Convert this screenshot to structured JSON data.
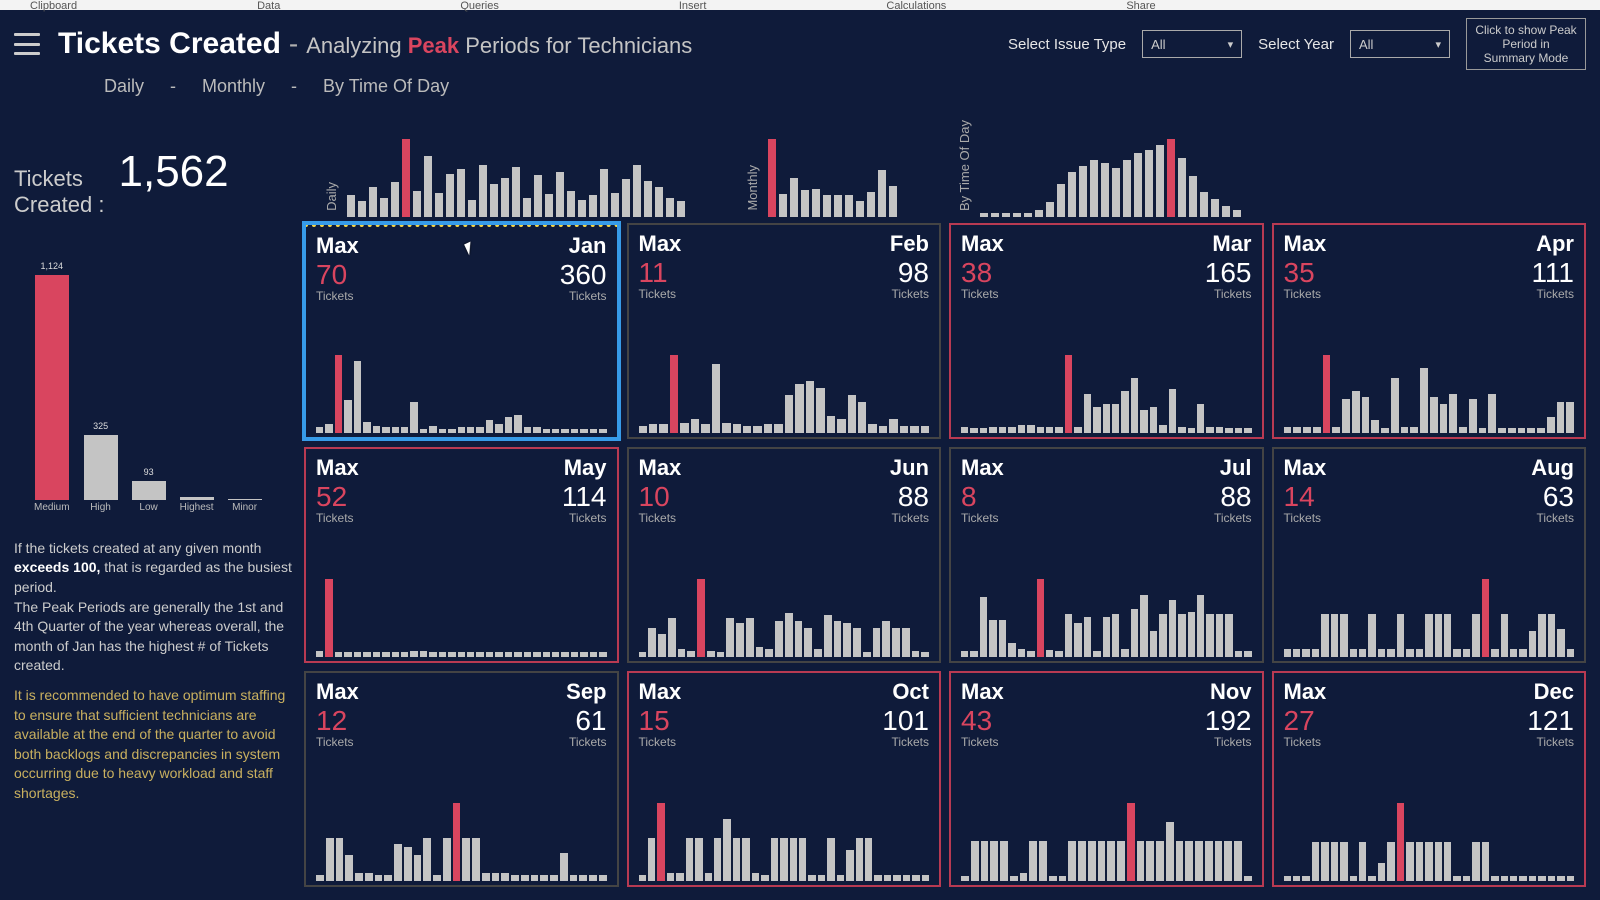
{
  "colors": {
    "background": "#0f1b3a",
    "text": "#e6e6e6",
    "accent_red": "#d9455f",
    "accent_blue": "#379be8",
    "accent_yellow": "#c9b05f",
    "bar_gray": "#c4c4c4",
    "border_busy": "#b83a52",
    "border_normal": "#555"
  },
  "ribbon": [
    "Clipboard",
    "Data",
    "Queries",
    "Insert",
    "Calculations",
    "Share"
  ],
  "header": {
    "title": "Tickets Created",
    "subtitle_pre": "Analyzing",
    "subtitle_peak": "Peak",
    "subtitle_post": "Periods for Technicians",
    "filter1_label": "Select Issue Type",
    "filter1_value": "All",
    "filter2_label": "Select Year",
    "filter2_value": "All",
    "summary_btn": "Click to show Peak Period in Summary Mode"
  },
  "tabs": {
    "t1": "Daily",
    "sep": "-",
    "t2": "Monthly",
    "t3": "By Time Of Day"
  },
  "kpi": {
    "label_l1": "Tickets",
    "label_l2": "Created :",
    "value": "1,562"
  },
  "priority_chart": {
    "type": "bar",
    "ylim": [
      0,
      1200
    ],
    "bars": [
      {
        "cat": "Medium",
        "value": 1124,
        "color": "#d9455f",
        "label": "1,124"
      },
      {
        "cat": "High",
        "value": 325,
        "color": "#c4c4c4",
        "label": "325"
      },
      {
        "cat": "Low",
        "value": 93,
        "color": "#c4c4c4",
        "label": "93"
      },
      {
        "cat": "Highest",
        "value": 15,
        "color": "#c4c4c4",
        "label": ""
      },
      {
        "cat": "Minor",
        "value": 5,
        "color": "#c4c4c4",
        "label": ""
      }
    ]
  },
  "para": {
    "p1a": "If the tickets created at any given month ",
    "p1b": "exceeds 100,",
    "p1c": " that is regarded as the busiest period.",
    "p2": "The Peak Periods are generally the 1st and 4th Quarter of the year whereas overall, the month of Jan has the highest # of Tickets created.",
    "rec": "It is recommended to have optimum staffing to ensure that sufficient technicians are available at the end of the quarter to avoid both backlogs and discrepancies in system occurring due to heavy workload and staff shortages."
  },
  "mini": {
    "daily": {
      "label": "Daily",
      "bars": [
        25,
        18,
        35,
        22,
        40,
        90,
        30,
        70,
        28,
        50,
        55,
        20,
        60,
        38,
        45,
        58,
        22,
        48,
        26,
        52,
        30,
        20,
        25,
        55,
        28,
        44,
        60,
        42,
        35,
        22,
        18
      ],
      "hl": 5
    },
    "monthly": {
      "label": "Monthly",
      "bars": [
        100,
        30,
        50,
        35,
        36,
        28,
        28,
        28,
        20,
        32,
        60,
        40
      ],
      "hl": 0
    },
    "tod": {
      "label": "By Time Of Day",
      "bars": [
        5,
        5,
        5,
        5,
        5,
        8,
        18,
        40,
        55,
        62,
        70,
        66,
        60,
        70,
        78,
        82,
        88,
        95,
        72,
        50,
        30,
        22,
        14,
        8
      ],
      "hl": 17
    }
  },
  "busy_threshold": 100,
  "months": [
    {
      "name": "Jan",
      "max": 70,
      "total": 360,
      "selected": true,
      "spark": [
        5,
        8,
        70,
        30,
        65,
        10,
        6,
        5,
        5,
        5,
        28,
        4,
        6,
        4,
        4,
        5,
        5,
        5,
        12,
        8,
        14,
        16,
        5,
        5,
        4,
        4,
        4,
        4,
        4,
        4,
        4
      ]
    },
    {
      "name": "Feb",
      "max": 11,
      "total": 98,
      "spark": [
        4,
        5,
        5,
        45,
        6,
        8,
        5,
        40,
        6,
        5,
        4,
        4,
        5,
        5,
        22,
        28,
        30,
        26,
        10,
        8,
        22,
        18,
        5,
        4,
        8,
        4,
        4,
        4
      ]
    },
    {
      "name": "Mar",
      "max": 38,
      "total": 165,
      "spark": [
        5,
        4,
        4,
        5,
        5,
        5,
        6,
        6,
        5,
        5,
        5,
        60,
        5,
        30,
        20,
        22,
        22,
        32,
        42,
        18,
        20,
        6,
        34,
        5,
        4,
        22,
        5,
        5,
        4,
        4,
        4
      ]
    },
    {
      "name": "Apr",
      "max": 35,
      "total": 111,
      "spark": [
        5,
        5,
        5,
        5,
        60,
        5,
        26,
        32,
        28,
        10,
        4,
        42,
        5,
        5,
        50,
        28,
        22,
        30,
        5,
        26,
        4,
        30,
        4,
        4,
        4,
        4,
        4,
        12,
        24,
        24
      ]
    },
    {
      "name": "May",
      "max": 52,
      "total": 114,
      "spark": [
        5,
        60,
        4,
        4,
        4,
        4,
        4,
        4,
        4,
        4,
        5,
        5,
        4,
        4,
        4,
        4,
        4,
        4,
        4,
        4,
        4,
        4,
        4,
        4,
        4,
        4,
        4,
        4,
        4,
        4,
        4
      ]
    },
    {
      "name": "Jun",
      "max": 10,
      "total": 88,
      "spark": [
        4,
        22,
        18,
        30,
        6,
        5,
        60,
        5,
        4,
        30,
        26,
        30,
        8,
        6,
        28,
        34,
        28,
        22,
        6,
        32,
        28,
        26,
        22,
        4,
        22,
        28,
        22,
        22,
        5,
        4
      ]
    },
    {
      "name": "Jul",
      "max": 8,
      "total": 88,
      "spark": [
        4,
        4,
        42,
        26,
        26,
        10,
        6,
        4,
        55,
        5,
        4,
        30,
        24,
        28,
        4,
        28,
        30,
        6,
        34,
        44,
        18,
        30,
        40,
        30,
        32,
        44,
        30,
        30,
        30,
        4,
        4
      ]
    },
    {
      "name": "Aug",
      "max": 14,
      "total": 63,
      "spark": [
        6,
        6,
        6,
        6,
        30,
        30,
        30,
        6,
        6,
        30,
        6,
        6,
        30,
        6,
        6,
        30,
        30,
        30,
        6,
        6,
        30,
        55,
        6,
        30,
        6,
        6,
        18,
        30,
        30,
        20,
        6
      ]
    },
    {
      "name": "Sep",
      "max": 12,
      "total": 61,
      "spark": [
        4,
        30,
        30,
        18,
        6,
        6,
        4,
        4,
        26,
        24,
        18,
        30,
        4,
        30,
        55,
        30,
        30,
        6,
        6,
        6,
        4,
        4,
        4,
        4,
        4,
        20,
        4,
        4,
        4,
        4
      ]
    },
    {
      "name": "Oct",
      "max": 15,
      "total": 101,
      "spark": [
        4,
        30,
        55,
        6,
        6,
        30,
        30,
        6,
        30,
        44,
        30,
        30,
        6,
        4,
        30,
        30,
        30,
        30,
        4,
        4,
        30,
        4,
        22,
        30,
        30,
        4,
        4,
        4,
        4,
        4,
        4
      ]
    },
    {
      "name": "Nov",
      "max": 43,
      "total": 192,
      "spark": [
        4,
        30,
        30,
        30,
        30,
        4,
        6,
        30,
        30,
        4,
        4,
        30,
        30,
        30,
        30,
        30,
        30,
        58,
        30,
        30,
        30,
        44,
        30,
        30,
        30,
        30,
        30,
        30,
        30,
        4
      ]
    },
    {
      "name": "Dec",
      "max": 27,
      "total": 121,
      "spark": [
        4,
        4,
        4,
        30,
        30,
        30,
        30,
        4,
        30,
        4,
        14,
        30,
        60,
        30,
        30,
        30,
        30,
        30,
        4,
        4,
        30,
        30,
        4,
        4,
        4,
        4,
        4,
        4,
        4,
        4,
        4
      ]
    }
  ],
  "labels": {
    "max": "Max",
    "tickets": "Tickets"
  }
}
